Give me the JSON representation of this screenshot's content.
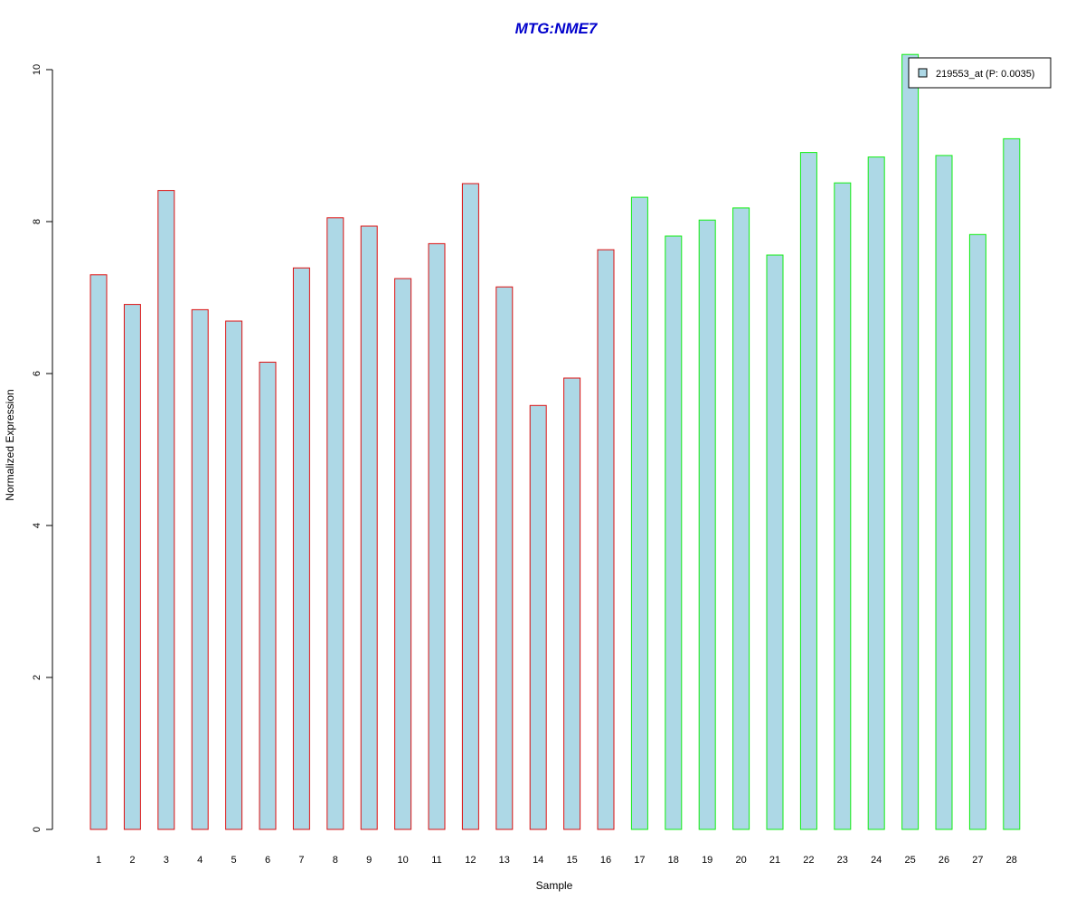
{
  "colors": {
    "title": "#0000cc",
    "bar_fill": "#add8e6",
    "group1_border": "#dd1111",
    "group2_border": "#11ee11",
    "axis": "#000000"
  },
  "chart_data": {
    "type": "bar",
    "title": "MTG:NME7",
    "xlabel": "Sample",
    "ylabel": "Normalized Expression",
    "ylim": [
      0,
      10
    ],
    "yticks": [
      "0",
      "2",
      "4",
      "6",
      "8",
      "10"
    ],
    "grid": false,
    "legend_position": "top-right",
    "categories": [
      "1",
      "2",
      "3",
      "4",
      "5",
      "6",
      "7",
      "8",
      "9",
      "10",
      "11",
      "12",
      "13",
      "14",
      "15",
      "16",
      "17",
      "18",
      "19",
      "20",
      "21",
      "22",
      "23",
      "24",
      "25",
      "26",
      "27",
      "28"
    ],
    "series": [
      {
        "name": "219553_at (P: 0.0035)",
        "values": [
          7.3,
          6.91,
          8.41,
          6.84,
          6.69,
          6.15,
          7.39,
          8.05,
          7.94,
          7.25,
          7.71,
          8.5,
          7.14,
          5.58,
          5.94,
          7.63,
          8.32,
          7.81,
          8.02,
          8.18,
          7.56,
          8.91,
          8.51,
          8.85,
          10.2,
          8.87,
          7.83,
          9.09
        ]
      }
    ],
    "groups": [
      {
        "from": 1,
        "to": 16,
        "border": "#dd1111"
      },
      {
        "from": 17,
        "to": 28,
        "border": "#11ee11"
      }
    ]
  }
}
